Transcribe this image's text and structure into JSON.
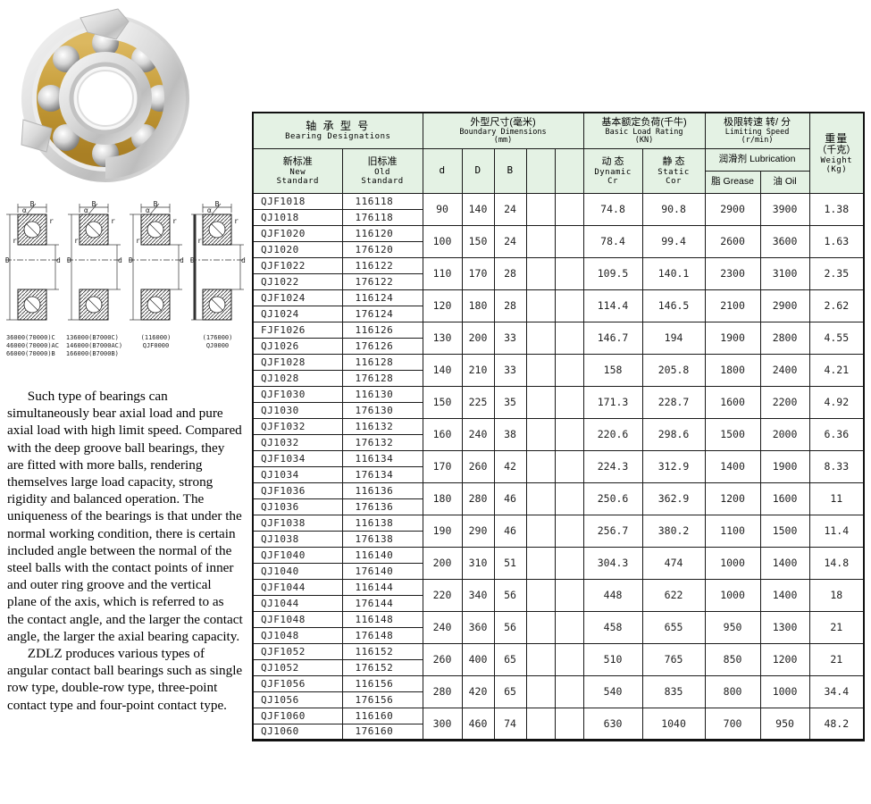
{
  "photo": {
    "name": "angular contact ball bearing photo"
  },
  "dim_labels": {
    "B": "B",
    "D": "D",
    "d": "d",
    "r": "r",
    "alpha": "α"
  },
  "drawings": [
    {
      "captions": [
        "36000(70000)C",
        "46000(70000)AC",
        "66000(70000)B"
      ],
      "thickD": false,
      "centered": false
    },
    {
      "captions": [
        "136000(B7000C)",
        "146000(B7000AC)",
        "166000(B7000B)"
      ],
      "thickD": false,
      "centered": false
    },
    {
      "captions": [
        "(116000)",
        "QJF0000"
      ],
      "thickD": false,
      "centered": true
    },
    {
      "captions": [
        "(176000)",
        "QJ0000"
      ],
      "thickD": true,
      "centered": true
    }
  ],
  "description": {
    "para1": "Such type of bearings can simultaneously bear axial load and pure axial load with high limit speed. Compared with the deep groove ball bearings, they are fitted with more balls, rendering themselves large load capacity, strong rigidity and balanced operation. The uniqueness of the bearings is that under the normal working condition, there is certain included angle between the normal of the steel balls with the contact points of inner and outer ring groove and the vertical plane of the axis, which is referred to as the contact angle, and the larger the contact angle, the larger the axial bearing capacity.",
    "para2": "ZDLZ produces various types of angular contact ball bearings such as single row type, double-row type, three-point contact type and four-point contact type."
  },
  "table": {
    "header": {
      "designations_cn": "轴 承 型 号",
      "designations_en": "Bearing  Designations",
      "new_std_cn": "新标准",
      "new_std_en1": "New",
      "new_std_en2": "Standard",
      "old_std_cn": "旧标准",
      "old_std_en1": "Old",
      "old_std_en2": "Standard",
      "dims_cn": "外型尺寸(毫米)",
      "dims_en": "Boundary Dimensions",
      "dims_unit": "(mm)",
      "col_d": "d",
      "col_D": "D",
      "col_B": "B",
      "load_cn": "基本额定负荷(千牛)",
      "load_en": "Basic Load Rating",
      "load_unit": "(KN)",
      "dynamic_cn": "动 态",
      "dynamic_en": "Dynamic",
      "dynamic_sym": "Cr",
      "static_cn": "静 态",
      "static_en": "Static",
      "static_sym": "Cor",
      "speed_cn": "极限转速  转/ 分",
      "speed_en": "Limiting Speed",
      "speed_unit": "(r/min)",
      "lube_cn": "润滑剂 Lubrication",
      "grease": "脂 Grease",
      "oil": "油 Oil",
      "weight_cn": "重量",
      "weight_cn2": "（千克）",
      "weight_en": "Weight",
      "weight_unit": "(Kg)"
    },
    "rows": [
      {
        "new1": "QJF1018",
        "old1": "116118",
        "new2": "QJ1018",
        "old2": "176118",
        "d": "90",
        "D": "140",
        "B": "24",
        "cr": "74.8",
        "cor": "90.8",
        "grease": "2900",
        "oil": "3900",
        "weight": "1.38"
      },
      {
        "new1": "QJF1020",
        "old1": "116120",
        "new2": "QJ1020",
        "old2": "176120",
        "d": "100",
        "D": "150",
        "B": "24",
        "cr": "78.4",
        "cor": "99.4",
        "grease": "2600",
        "oil": "3600",
        "weight": "1.63"
      },
      {
        "new1": "QJF1022",
        "old1": "116122",
        "new2": "QJ1022",
        "old2": "176122",
        "d": "110",
        "D": "170",
        "B": "28",
        "cr": "109.5",
        "cor": "140.1",
        "grease": "2300",
        "oil": "3100",
        "weight": "2.35"
      },
      {
        "new1": "QJF1024",
        "old1": "116124",
        "new2": "QJ1024",
        "old2": "176124",
        "d": "120",
        "D": "180",
        "B": "28",
        "cr": "114.4",
        "cor": "146.5",
        "grease": "2100",
        "oil": "2900",
        "weight": "2.62"
      },
      {
        "new1": "FJF1026",
        "old1": "116126",
        "new2": "QJ1026",
        "old2": "176126",
        "d": "130",
        "D": "200",
        "B": "33",
        "cr": "146.7",
        "cor": "194",
        "grease": "1900",
        "oil": "2800",
        "weight": "4.55"
      },
      {
        "new1": "QJF1028",
        "old1": "116128",
        "new2": "QJ1028",
        "old2": "176128",
        "d": "140",
        "D": "210",
        "B": "33",
        "cr": "158",
        "cor": "205.8",
        "grease": "1800",
        "oil": "2400",
        "weight": "4.21"
      },
      {
        "new1": "QJF1030",
        "old1": "116130",
        "new2": "QJ1030",
        "old2": "176130",
        "d": "150",
        "D": "225",
        "B": "35",
        "cr": "171.3",
        "cor": "228.7",
        "grease": "1600",
        "oil": "2200",
        "weight": "4.92"
      },
      {
        "new1": "QJF1032",
        "old1": "116132",
        "new2": "QJ1032",
        "old2": "176132",
        "d": "160",
        "D": "240",
        "B": "38",
        "cr": "220.6",
        "cor": "298.6",
        "grease": "1500",
        "oil": "2000",
        "weight": "6.36"
      },
      {
        "new1": "QJF1034",
        "old1": "116134",
        "new2": "QJ1034",
        "old2": "176134",
        "d": "170",
        "D": "260",
        "B": "42",
        "cr": "224.3",
        "cor": "312.9",
        "grease": "1400",
        "oil": "1900",
        "weight": "8.33"
      },
      {
        "new1": "QJF1036",
        "old1": "116136",
        "new2": "QJ1036",
        "old2": "176136",
        "d": "180",
        "D": "280",
        "B": "46",
        "cr": "250.6",
        "cor": "362.9",
        "grease": "1200",
        "oil": "1600",
        "weight": "11"
      },
      {
        "new1": "QJF1038",
        "old1": "116138",
        "new2": "QJ1038",
        "old2": "176138",
        "d": "190",
        "D": "290",
        "B": "46",
        "cr": "256.7",
        "cor": "380.2",
        "grease": "1100",
        "oil": "1500",
        "weight": "11.4"
      },
      {
        "new1": "QJF1040",
        "old1": "116140",
        "new2": "QJ1040",
        "old2": "176140",
        "d": "200",
        "D": "310",
        "B": "51",
        "cr": "304.3",
        "cor": "474",
        "grease": "1000",
        "oil": "1400",
        "weight": "14.8"
      },
      {
        "new1": "QJF1044",
        "old1": "116144",
        "new2": "QJ1044",
        "old2": "176144",
        "d": "220",
        "D": "340",
        "B": "56",
        "cr": "448",
        "cor": "622",
        "grease": "1000",
        "oil": "1400",
        "weight": "18"
      },
      {
        "new1": "QJF1048",
        "old1": "116148",
        "new2": "QJ1048",
        "old2": "176148",
        "d": "240",
        "D": "360",
        "B": "56",
        "cr": "458",
        "cor": "655",
        "grease": "950",
        "oil": "1300",
        "weight": "21"
      },
      {
        "new1": "QJF1052",
        "old1": "116152",
        "new2": "QJ1052",
        "old2": "176152",
        "d": "260",
        "D": "400",
        "B": "65",
        "cr": "510",
        "cor": "765",
        "grease": "850",
        "oil": "1200",
        "weight": "21"
      },
      {
        "new1": "QJF1056",
        "old1": "116156",
        "new2": "QJ1056",
        "old2": "176156",
        "d": "280",
        "D": "420",
        "B": "65",
        "cr": "540",
        "cor": "835",
        "grease": "800",
        "oil": "1000",
        "weight": "34.4"
      },
      {
        "new1": "QJF1060",
        "old1": "116160",
        "new2": "QJ1060",
        "old2": "176160",
        "d": "300",
        "D": "460",
        "B": "74",
        "cr": "630",
        "cor": "1040",
        "grease": "700",
        "oil": "950",
        "weight": "48.2"
      }
    ]
  },
  "colors": {
    "header_bg": "#e4f2e4",
    "border": "#1a1a1a",
    "brass": "#c8a13e"
  }
}
